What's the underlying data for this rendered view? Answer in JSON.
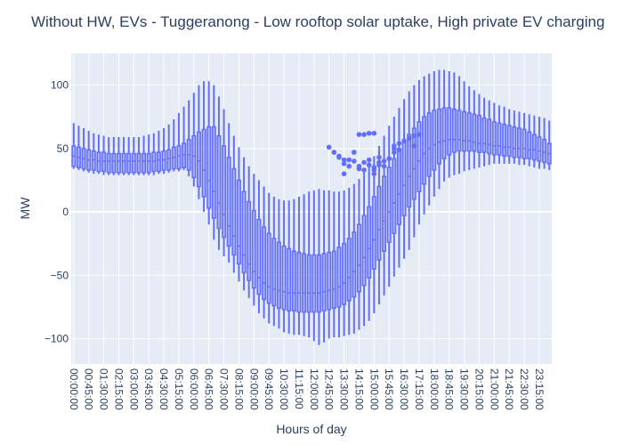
{
  "chart_data": {
    "type": "box",
    "title": "Without HW, EVs - Tuggeranong - Low rooftop solar uptake, High private EV charging",
    "xlabel": "Hours of day",
    "ylabel": "MW",
    "ylim": [
      -120,
      125
    ],
    "yticks": [
      100,
      50,
      0,
      -50,
      -100
    ],
    "ytick_labels": [
      "100",
      "50",
      "0",
      "−50",
      "−100"
    ],
    "grid": true,
    "plot_bg": "#e5ecf6",
    "box_color": "#636efa",
    "x_tick_labels": [
      "00:00:00",
      "00:45:00",
      "01:30:00",
      "02:15:00",
      "03:00:00",
      "03:45:00",
      "04:30:00",
      "05:15:00",
      "06:00:00",
      "06:45:00",
      "07:30:00",
      "08:15:00",
      "09:00:00",
      "09:45:00",
      "10:30:00",
      "11:15:00",
      "12:00:00",
      "12:45:00",
      "13:30:00",
      "14:15:00",
      "15:00:00",
      "15:45:00",
      "16:30:00",
      "17:15:00",
      "18:00:00",
      "18:45:00",
      "19:30:00",
      "20:15:00",
      "21:00:00",
      "21:45:00",
      "22:30:00",
      "23:15:00"
    ],
    "x_tick_every": 3,
    "categories_count": 96,
    "interval_minutes": 15,
    "series": [
      {
        "min": [
          34,
          33,
          32,
          31,
          30,
          30,
          29,
          29,
          29,
          29,
          29,
          29,
          29,
          29,
          29,
          29,
          29,
          30,
          30,
          31,
          32,
          32,
          33,
          28,
          20,
          10,
          0,
          -10,
          -22,
          -30,
          -35,
          -40,
          -48,
          -55,
          -62,
          -68,
          -74,
          -80,
          -84,
          -88,
          -90,
          -92,
          -95,
          -96,
          -97,
          -97,
          -98,
          -99,
          -102,
          -105,
          -103,
          -100,
          -99,
          -99,
          -98,
          -97,
          -96,
          -93,
          -90,
          -86,
          -80,
          -73,
          -66,
          -59,
          -51,
          -44,
          -37,
          -30,
          -20,
          -10,
          -2,
          5,
          12,
          18,
          24,
          27,
          29,
          30,
          32,
          33,
          34,
          35,
          36,
          37,
          38,
          38,
          38,
          38,
          38,
          37,
          37,
          36,
          35,
          34,
          34,
          33
        ],
        "q1": [
          36,
          35,
          34,
          33,
          33,
          32,
          32,
          31,
          31,
          31,
          31,
          31,
          31,
          31,
          31,
          31,
          32,
          32,
          33,
          33,
          34,
          34,
          35,
          33,
          27,
          20,
          12,
          3,
          -5,
          -13,
          -20,
          -27,
          -34,
          -41,
          -48,
          -54,
          -60,
          -65,
          -69,
          -72,
          -74,
          -76,
          -77,
          -78,
          -78,
          -79,
          -79,
          -79,
          -79,
          -79,
          -78,
          -77,
          -76,
          -75,
          -73,
          -70,
          -67,
          -63,
          -58,
          -52,
          -45,
          -38,
          -31,
          -24,
          -17,
          -10,
          -3,
          4,
          10,
          16,
          22,
          28,
          33,
          38,
          42,
          45,
          47,
          48,
          48,
          48,
          48,
          47,
          47,
          46,
          45,
          45,
          44,
          44,
          43,
          43,
          42,
          42,
          41,
          40,
          39,
          38
        ],
        "median": [
          44,
          43,
          42,
          41,
          41,
          40,
          40,
          40,
          40,
          40,
          40,
          40,
          40,
          40,
          40,
          40,
          40,
          41,
          41,
          42,
          43,
          44,
          45,
          45,
          44,
          40,
          33,
          25,
          16,
          7,
          -2,
          -11,
          -19,
          -27,
          -34,
          -41,
          -47,
          -52,
          -56,
          -59,
          -61,
          -62,
          -63,
          -64,
          -64,
          -64,
          -64,
          -64,
          -64,
          -64,
          -63,
          -62,
          -61,
          -59,
          -56,
          -52,
          -47,
          -42,
          -36,
          -29,
          -22,
          -14,
          -7,
          0,
          7,
          14,
          21,
          28,
          34,
          40,
          46,
          50,
          53,
          55,
          56,
          57,
          57,
          57,
          56,
          56,
          55,
          54,
          54,
          53,
          52,
          52,
          51,
          51,
          50,
          50,
          50,
          49,
          49,
          48,
          47,
          46
        ],
        "q3": [
          52,
          51,
          50,
          49,
          48,
          47,
          47,
          46,
          46,
          46,
          46,
          46,
          46,
          46,
          46,
          46,
          47,
          47,
          48,
          49,
          51,
          52,
          54,
          57,
          60,
          63,
          65,
          67,
          67,
          60,
          52,
          43,
          34,
          25,
          16,
          8,
          1,
          -6,
          -12,
          -17,
          -21,
          -24,
          -27,
          -29,
          -31,
          -32,
          -33,
          -34,
          -34,
          -34,
          -33,
          -32,
          -31,
          -28,
          -25,
          -21,
          -16,
          -10,
          -3,
          4,
          12,
          20,
          28,
          35,
          42,
          49,
          55,
          61,
          66,
          71,
          75,
          78,
          80,
          81,
          82,
          82,
          81,
          80,
          79,
          78,
          77,
          76,
          74,
          73,
          71,
          70,
          69,
          68,
          67,
          66,
          65,
          63,
          61,
          59,
          57,
          54
        ],
        "max": [
          70,
          68,
          66,
          64,
          62,
          61,
          60,
          59,
          59,
          59,
          59,
          59,
          59,
          59,
          60,
          61,
          62,
          64,
          66,
          69,
          73,
          78,
          83,
          88,
          94,
          100,
          103,
          103,
          100,
          91,
          81,
          70,
          60,
          51,
          43,
          36,
          30,
          25,
          20,
          15,
          12,
          10,
          9,
          9,
          10,
          12,
          14,
          16,
          17,
          18,
          17,
          17,
          16,
          16,
          17,
          19,
          22,
          26,
          31,
          37,
          44,
          52,
          60,
          68,
          75,
          82,
          89,
          95,
          100,
          104,
          107,
          109,
          111,
          112,
          112,
          111,
          110,
          107,
          103,
          99,
          96,
          93,
          90,
          88,
          86,
          84,
          83,
          81,
          80,
          79,
          78,
          77,
          76,
          75,
          74,
          72
        ],
        "outliers": [
          [
            51,
            51
          ],
          [
            52,
            47
          ],
          [
            53,
            44
          ],
          [
            53,
            43
          ],
          [
            54,
            30
          ],
          [
            54,
            38
          ],
          [
            54,
            41
          ],
          [
            55,
            36
          ],
          [
            55,
            41
          ],
          [
            56,
            40
          ],
          [
            56,
            47
          ],
          [
            57,
            36
          ],
          [
            57,
            34
          ],
          [
            57,
            61
          ],
          [
            58,
            61
          ],
          [
            58,
            39
          ],
          [
            58,
            33
          ],
          [
            59,
            41
          ],
          [
            59,
            62
          ],
          [
            59,
            37
          ],
          [
            60,
            30
          ],
          [
            60,
            33
          ],
          [
            60,
            35
          ],
          [
            60,
            62
          ],
          [
            61,
            37
          ],
          [
            61,
            43
          ],
          [
            61,
            39
          ],
          [
            62,
            40
          ],
          [
            62,
            36
          ],
          [
            63,
            42
          ],
          [
            64,
            47
          ],
          [
            64,
            50
          ],
          [
            64,
            52
          ],
          [
            65,
            54
          ],
          [
            65,
            49
          ],
          [
            66,
            56
          ],
          [
            67,
            58
          ],
          [
            68,
            52
          ],
          [
            68,
            60
          ],
          [
            69,
            61
          ]
        ]
      }
    ]
  }
}
